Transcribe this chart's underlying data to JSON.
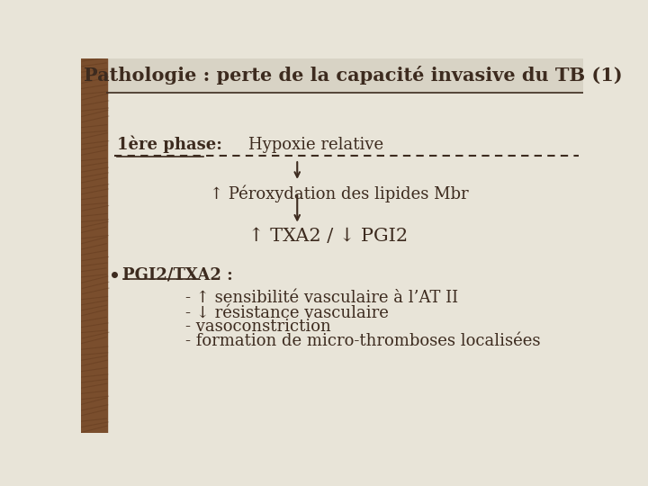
{
  "title": "Pathologie : perte de la capacité invasive du TB (1)",
  "bg_color": "#e8e4d8",
  "sidebar_color": "#7a4e2d",
  "title_color": "#3d2b1f",
  "text_color": "#3d2b1f",
  "title_fontsize": 15,
  "body_fontsize": 13,
  "phase_label": "1ère phase:",
  "hypoxie_label": "Hypoxie relative",
  "peroxy_label": "↑ Péroxydation des lipides Mbr",
  "txa_label": "↑ TXA2 / ↓ PGI2",
  "pgi_label": "PGI2/TXA2 :",
  "sub_items": [
    "- ↑ sensibilité vasculaire à l’AT II",
    "- ↓ résistance vasculaire",
    "- vasoconstriction",
    "- formation de micro-thromboses localisées"
  ]
}
